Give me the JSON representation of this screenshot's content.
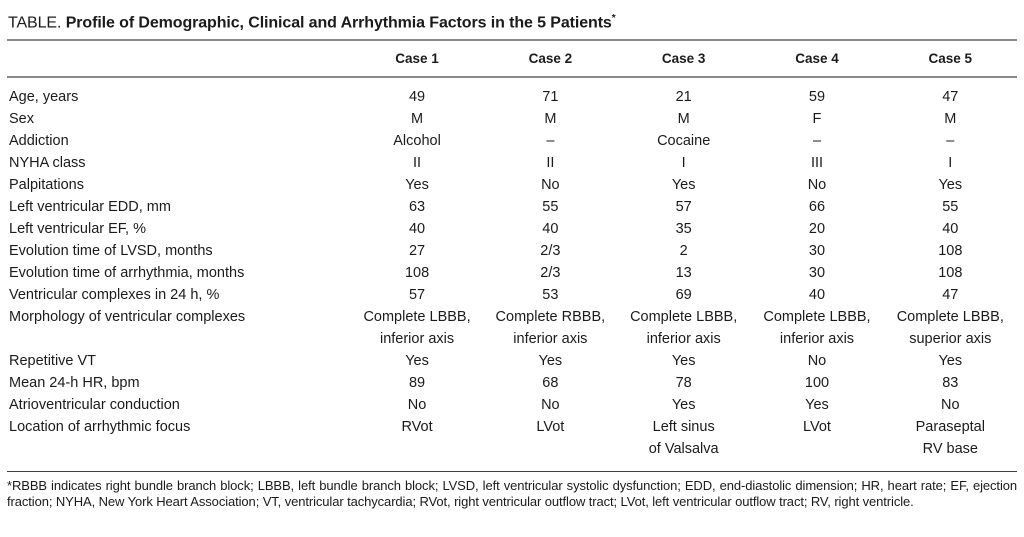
{
  "title": {
    "prefix": "TABLE.",
    "text": "Profile of Demographic, Clinical and Arrhythmia Factors in the 5 Patients",
    "asterisk": "*"
  },
  "table": {
    "columns": [
      "Case 1",
      "Case 2",
      "Case 3",
      "Case 4",
      "Case 5"
    ],
    "rows": [
      {
        "label": "Age, years",
        "values": [
          "49",
          "71",
          "21",
          "59",
          "47"
        ]
      },
      {
        "label": "Sex",
        "values": [
          "M",
          "M",
          "M",
          "F",
          "M"
        ]
      },
      {
        "label": "Addiction",
        "values": [
          "Alcohol",
          "–",
          "Cocaine",
          "–",
          "–"
        ]
      },
      {
        "label": "NYHA class",
        "values": [
          "II",
          "II",
          "I",
          "III",
          "I"
        ]
      },
      {
        "label": "Palpitations",
        "values": [
          "Yes",
          "No",
          "Yes",
          "No",
          "Yes"
        ]
      },
      {
        "label": "Left ventricular EDD, mm",
        "values": [
          "63",
          "55",
          "57",
          "66",
          "55"
        ]
      },
      {
        "label": "Left ventricular EF, %",
        "values": [
          "40",
          "40",
          "35",
          "20",
          "40"
        ]
      },
      {
        "label": "Evolution time of LVSD, months",
        "values": [
          "27",
          "2/3",
          "2",
          "30",
          "108"
        ]
      },
      {
        "label": "Evolution time of arrhythmia, months",
        "values": [
          "108",
          "2/3",
          "13",
          "30",
          "108"
        ]
      },
      {
        "label": "Ventricular complexes in 24 h, %",
        "values": [
          "57",
          "53",
          "69",
          "40",
          "47"
        ]
      },
      {
        "label": "Morphology of ventricular complexes",
        "values": [
          "Complete LBBB,\ninferior axis",
          "Complete RBBB,\ninferior axis",
          "Complete LBBB,\ninferior axis",
          "Complete LBBB,\ninferior axis",
          "Complete LBBB,\nsuperior axis"
        ]
      },
      {
        "label": "Repetitive VT",
        "values": [
          "Yes",
          "Yes",
          "Yes",
          "No",
          "Yes"
        ]
      },
      {
        "label": "Mean 24-h HR, bpm",
        "values": [
          "89",
          "68",
          "78",
          "100",
          "83"
        ]
      },
      {
        "label": "Atrioventricular conduction",
        "values": [
          "No",
          "No",
          "Yes",
          "Yes",
          "No"
        ]
      },
      {
        "label": "Location of arrhythmic focus",
        "values": [
          "RVot",
          "LVot",
          "Left sinus\nof Valsalva",
          "LVot",
          "Paraseptal\nRV base"
        ]
      }
    ]
  },
  "footnote": "*RBBB indicates right bundle branch block; LBBB, left bundle branch block; LVSD, left ventricular systolic dysfunction; EDD, end-diastolic dimension; HR, heart rate; EF, ejection fraction; NYHA, New York Heart Association; VT, ventricular tachycardia; RVot, right ventricular outflow tract; LVot, left ventricular outflow tract; RV, right ventricle.",
  "colors": {
    "text": "#1b1b1b",
    "rule_gray": "#8a8a8a",
    "rule_dark": "#3f3f3f",
    "background": "#ffffff"
  }
}
